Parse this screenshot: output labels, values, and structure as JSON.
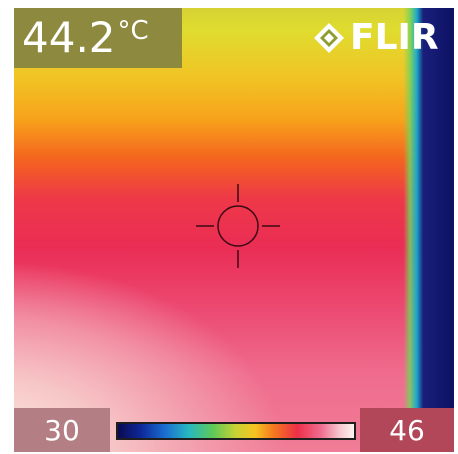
{
  "reading": {
    "value": "44.2",
    "unit": "°C"
  },
  "brand": {
    "name": "FLIR",
    "logo": "flir-diamond-logo-icon"
  },
  "crosshair": {
    "icon": "crosshair-icon"
  },
  "scale": {
    "min": "30",
    "max": "46",
    "palette": "iron"
  },
  "colors": {
    "reading_bg": "#8d8a3f",
    "scale_min_bg": "#b37f84",
    "scale_max_bg": "#b14758",
    "cold_edge": "#0c1164"
  }
}
